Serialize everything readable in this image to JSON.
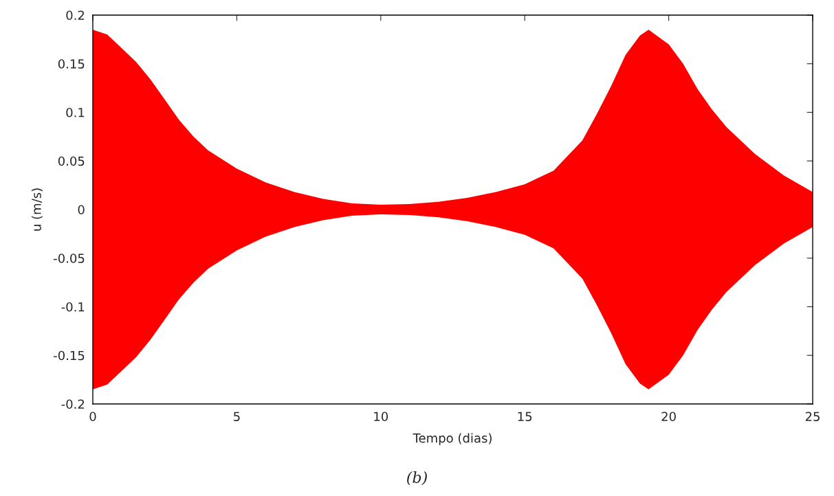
{
  "chart_data": {
    "type": "area",
    "xlabel": "Tempo (dias)",
    "ylabel": "u (m/s)",
    "annotations": [
      "(b)"
    ],
    "xlim": [
      0,
      25
    ],
    "xticks": [
      0,
      5,
      10,
      15,
      20,
      25
    ],
    "ylim": [
      -0.2,
      0.2
    ],
    "yticks": [
      -0.2,
      -0.15,
      -0.1,
      -0.05,
      0,
      0.05,
      0.1,
      0.15,
      0.2
    ],
    "grid": false,
    "legend": false,
    "x": [
      0,
      0.5,
      1,
      1.5,
      2,
      2.5,
      3,
      3.5,
      4,
      5,
      6,
      7,
      8,
      9,
      10,
      11,
      12,
      13,
      14,
      15,
      16,
      17,
      17.5,
      18,
      18.5,
      19,
      19.3,
      20,
      20.5,
      21,
      21.5,
      22,
      23,
      24,
      25
    ],
    "series": [
      {
        "color": "#ff0000",
        "values": [
          0.185,
          0.18,
          0.166,
          0.152,
          0.134,
          0.113,
          0.092,
          0.075,
          0.061,
          0.042,
          0.028,
          0.018,
          0.011,
          0.0064,
          0.005,
          0.0057,
          0.008,
          0.012,
          0.018,
          0.026,
          0.04,
          0.071,
          0.098,
          0.127,
          0.159,
          0.179,
          0.185,
          0.17,
          0.15,
          0.124,
          0.103,
          0.085,
          0.057,
          0.035,
          0.018
        ]
      },
      {
        "color": "#ff0000",
        "values": [
          -0.185,
          -0.18,
          -0.166,
          -0.152,
          -0.134,
          -0.113,
          -0.092,
          -0.075,
          -0.061,
          -0.042,
          -0.028,
          -0.018,
          -0.011,
          -0.0064,
          -0.005,
          -0.0057,
          -0.008,
          -0.012,
          -0.018,
          -0.026,
          -0.04,
          -0.071,
          -0.098,
          -0.127,
          -0.159,
          -0.179,
          -0.185,
          -0.17,
          -0.15,
          -0.124,
          -0.103,
          -0.085,
          -0.057,
          -0.035,
          -0.018
        ]
      }
    ]
  }
}
